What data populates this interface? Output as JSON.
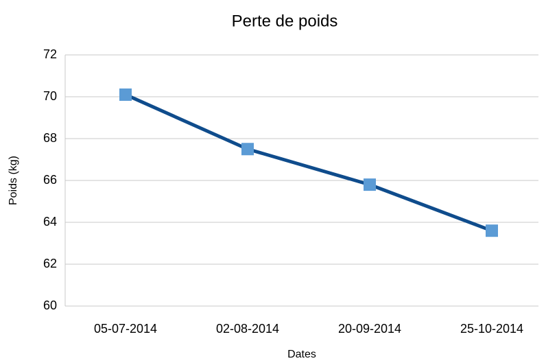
{
  "chart_data": {
    "type": "line",
    "title": "Perte de poids",
    "xlabel": "Dates",
    "ylabel": "Poids (kg)",
    "categories": [
      "05-07-2014",
      "02-08-2014",
      "20-09-2014",
      "25-10-2014"
    ],
    "values": [
      70.1,
      67.5,
      65.8,
      63.6
    ],
    "color": "#0f4c8c",
    "marker_color": "#5b9bd5",
    "ylim": [
      60,
      72
    ],
    "yticks": [
      60,
      62,
      64,
      66,
      68,
      70,
      72
    ],
    "grid": true
  }
}
